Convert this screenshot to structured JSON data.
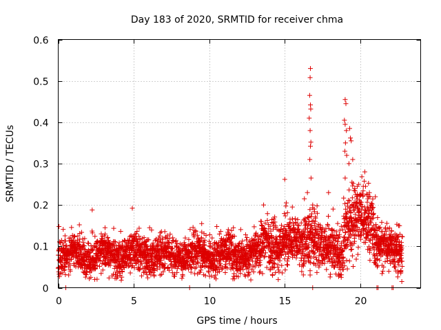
{
  "chart_data": {
    "type": "scatter",
    "title": "Day 183 of 2020, SRMTID for receiver chma",
    "xlabel": "GPS time / hours",
    "ylabel": "SRMTID / TECUs",
    "xlim": [
      0,
      24
    ],
    "ylim": [
      0,
      0.6
    ],
    "xticks": [
      0,
      5,
      10,
      15,
      20
    ],
    "xtick_labels": [
      "0",
      "5",
      "10",
      "15",
      "20"
    ],
    "yticks": [
      0,
      0.1,
      0.2,
      0.3,
      0.4,
      0.5,
      0.6
    ],
    "ytick_labels": [
      "0",
      "0.1",
      "0.2",
      "0.3",
      "0.4",
      "0.5",
      "0.6"
    ],
    "grid": true,
    "marker": "+",
    "series": [
      {
        "name": "SRMTID",
        "color": "#dd0000",
        "sampling_interval_hours": 0.01,
        "segments": [
          {
            "x_start": 0.0,
            "x_end": 13.4,
            "baseline": 0.08,
            "spread": 0.022,
            "seed": 11
          },
          {
            "x_start": 13.4,
            "x_end": 16.2,
            "baseline": 0.105,
            "spread": 0.03,
            "seed": 23
          },
          {
            "x_start": 16.2,
            "x_end": 17.2,
            "baseline": 0.11,
            "spread": 0.035,
            "seed": 37
          },
          {
            "x_start": 17.2,
            "x_end": 18.9,
            "baseline": 0.09,
            "spread": 0.028,
            "seed": 41
          },
          {
            "x_start": 18.9,
            "x_end": 20.9,
            "baseline": 0.16,
            "spread": 0.04,
            "seed": 53
          },
          {
            "x_start": 20.9,
            "x_end": 22.8,
            "baseline": 0.095,
            "spread": 0.025,
            "seed": 67
          }
        ],
        "outliers": [
          {
            "x": 0.05,
            "y": 0.148
          },
          {
            "x": 2.25,
            "y": 0.188
          },
          {
            "x": 1.4,
            "y": 0.152
          },
          {
            "x": 3.1,
            "y": 0.145
          },
          {
            "x": 6.05,
            "y": 0.145
          },
          {
            "x": 9.5,
            "y": 0.155
          },
          {
            "x": 10.5,
            "y": 0.148
          },
          {
            "x": 11.6,
            "y": 0.145
          },
          {
            "x": 13.6,
            "y": 0.2
          },
          {
            "x": 15.0,
            "y": 0.262
          },
          {
            "x": 15.1,
            "y": 0.205
          },
          {
            "x": 15.5,
            "y": 0.195
          },
          {
            "x": 16.3,
            "y": 0.215
          },
          {
            "x": 16.5,
            "y": 0.23
          },
          {
            "x": 16.7,
            "y": 0.53
          },
          {
            "x": 16.68,
            "y": 0.508
          },
          {
            "x": 16.65,
            "y": 0.465
          },
          {
            "x": 16.7,
            "y": 0.442
          },
          {
            "x": 16.72,
            "y": 0.432
          },
          {
            "x": 16.62,
            "y": 0.41
          },
          {
            "x": 16.68,
            "y": 0.38
          },
          {
            "x": 16.73,
            "y": 0.352
          },
          {
            "x": 16.7,
            "y": 0.342
          },
          {
            "x": 16.66,
            "y": 0.31
          },
          {
            "x": 16.74,
            "y": 0.265
          },
          {
            "x": 16.85,
            "y": 0.2
          },
          {
            "x": 16.95,
            "y": 0.19
          },
          {
            "x": 17.9,
            "y": 0.23
          },
          {
            "x": 19.0,
            "y": 0.455
          },
          {
            "x": 19.05,
            "y": 0.445
          },
          {
            "x": 18.95,
            "y": 0.405
          },
          {
            "x": 19.0,
            "y": 0.395
          },
          {
            "x": 19.08,
            "y": 0.38
          },
          {
            "x": 19.3,
            "y": 0.385
          },
          {
            "x": 19.35,
            "y": 0.362
          },
          {
            "x": 19.4,
            "y": 0.355
          },
          {
            "x": 19.02,
            "y": 0.35
          },
          {
            "x": 19.1,
            "y": 0.32
          },
          {
            "x": 18.98,
            "y": 0.33
          },
          {
            "x": 19.25,
            "y": 0.3
          },
          {
            "x": 19.5,
            "y": 0.31
          },
          {
            "x": 20.3,
            "y": 0.28
          },
          {
            "x": 19.45,
            "y": 0.255
          },
          {
            "x": 19.8,
            "y": 0.245
          },
          {
            "x": 20.2,
            "y": 0.245
          },
          {
            "x": 20.35,
            "y": 0.245
          },
          {
            "x": 19.0,
            "y": 0.265
          },
          {
            "x": 19.6,
            "y": 0.235
          },
          {
            "x": 20.05,
            "y": 0.225
          },
          {
            "x": 20.5,
            "y": 0.215
          },
          {
            "x": 20.7,
            "y": 0.2
          },
          {
            "x": 21.0,
            "y": 0.22
          },
          {
            "x": 18.2,
            "y": 0.19
          },
          {
            "x": 19.9,
            "y": 0.25
          },
          {
            "x": 0.5,
            "y": 0.0
          },
          {
            "x": 8.7,
            "y": 0.0
          },
          {
            "x": 16.85,
            "y": 0.0
          },
          {
            "x": 21.1,
            "y": 0.0
          },
          {
            "x": 21.18,
            "y": 0.0
          },
          {
            "x": 22.1,
            "y": 0.0
          },
          {
            "x": 22.18,
            "y": 0.0
          },
          {
            "x": 22.75,
            "y": 0.015
          },
          {
            "x": 22.6,
            "y": 0.15
          },
          {
            "x": 22.3,
            "y": 0.13
          },
          {
            "x": 21.5,
            "y": 0.04
          },
          {
            "x": 18.6,
            "y": 0.03
          }
        ]
      }
    ]
  }
}
